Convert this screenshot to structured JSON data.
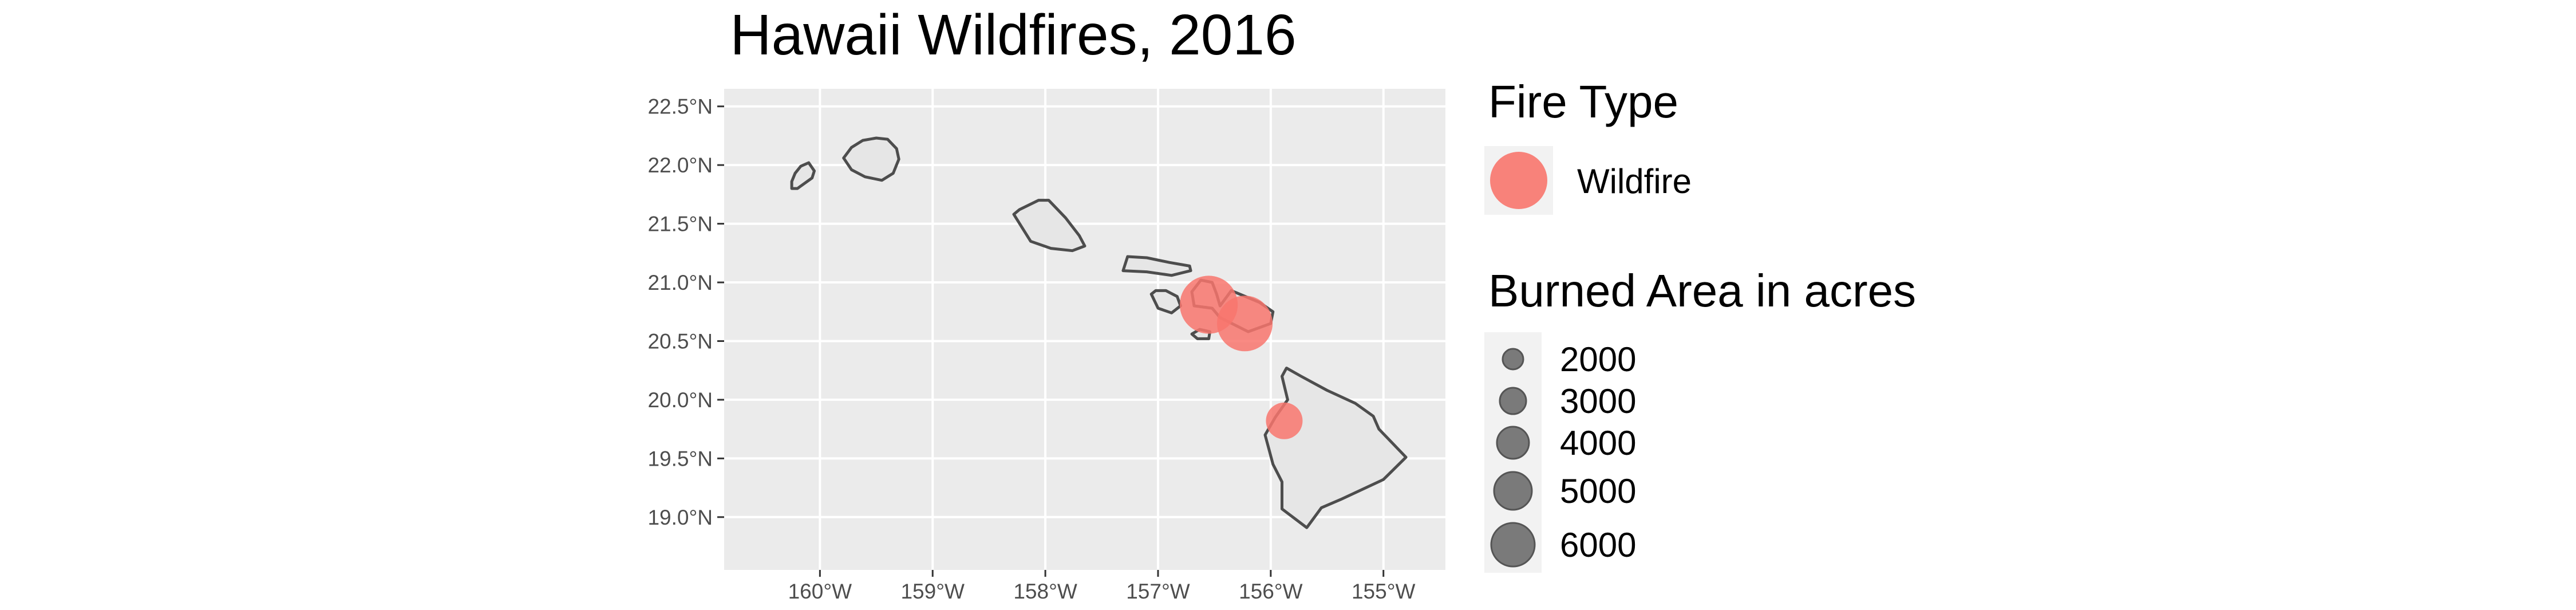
{
  "title": "Hawaii Wildfires, 2016",
  "colors": {
    "panel_background": "#ebebeb",
    "grid": "#ffffff",
    "island_fill": "#e6e6e6",
    "island_stroke": "#4d4d4d",
    "wildfire": "#f8766d",
    "size_legend_point": "#7a7a7a"
  },
  "chart_data": {
    "type": "map",
    "xlim": [
      -160.85,
      -154.45
    ],
    "ylim": [
      18.55,
      22.65
    ],
    "x_ticks": [
      {
        "value": -160,
        "label": "160°W"
      },
      {
        "value": -159,
        "label": "159°W"
      },
      {
        "value": -158,
        "label": "158°W"
      },
      {
        "value": -157,
        "label": "157°W"
      },
      {
        "value": -156,
        "label": "156°W"
      },
      {
        "value": -155,
        "label": "155°W"
      }
    ],
    "y_ticks": [
      {
        "value": 19.0,
        "label": "19.0°N"
      },
      {
        "value": 19.5,
        "label": "19.5°N"
      },
      {
        "value": 20.0,
        "label": "20.0°N"
      },
      {
        "value": 20.5,
        "label": "20.5°N"
      },
      {
        "value": 21.0,
        "label": "21.0°N"
      },
      {
        "value": 21.5,
        "label": "21.5°N"
      },
      {
        "value": 22.0,
        "label": "22.0°N"
      },
      {
        "value": 22.5,
        "label": "22.5°N"
      }
    ],
    "grid": true,
    "islands": [
      {
        "name": "niihau",
        "coords": [
          [
            -160.25,
            21.8
          ],
          [
            -160.2,
            21.8
          ],
          [
            -160.07,
            21.89
          ],
          [
            -160.05,
            21.95
          ],
          [
            -160.1,
            22.02
          ],
          [
            -160.17,
            21.99
          ],
          [
            -160.22,
            21.93
          ],
          [
            -160.25,
            21.86
          ]
        ]
      },
      {
        "name": "kauai",
        "coords": [
          [
            -159.79,
            22.06
          ],
          [
            -159.72,
            21.96
          ],
          [
            -159.6,
            21.9
          ],
          [
            -159.45,
            21.87
          ],
          [
            -159.35,
            21.93
          ],
          [
            -159.3,
            22.05
          ],
          [
            -159.32,
            22.14
          ],
          [
            -159.4,
            22.22
          ],
          [
            -159.5,
            22.23
          ],
          [
            -159.62,
            22.21
          ],
          [
            -159.72,
            22.15
          ]
        ]
      },
      {
        "name": "oahu",
        "coords": [
          [
            -158.28,
            21.58
          ],
          [
            -158.13,
            21.35
          ],
          [
            -157.95,
            21.29
          ],
          [
            -157.76,
            21.27
          ],
          [
            -157.65,
            21.31
          ],
          [
            -157.7,
            21.4
          ],
          [
            -157.82,
            21.55
          ],
          [
            -157.97,
            21.7
          ],
          [
            -158.06,
            21.7
          ],
          [
            -158.23,
            21.62
          ]
        ]
      },
      {
        "name": "molokai",
        "coords": [
          [
            -157.31,
            21.1
          ],
          [
            -157.27,
            21.22
          ],
          [
            -157.1,
            21.21
          ],
          [
            -156.9,
            21.17
          ],
          [
            -156.72,
            21.14
          ],
          [
            -156.71,
            21.1
          ],
          [
            -156.88,
            21.06
          ],
          [
            -157.1,
            21.09
          ]
        ]
      },
      {
        "name": "lanai",
        "coords": [
          [
            -157.06,
            20.9
          ],
          [
            -157.0,
            20.78
          ],
          [
            -156.88,
            20.74
          ],
          [
            -156.8,
            20.8
          ],
          [
            -156.83,
            20.88
          ],
          [
            -156.93,
            20.93
          ],
          [
            -157.02,
            20.93
          ]
        ]
      },
      {
        "name": "kahoolawe",
        "coords": [
          [
            -156.7,
            20.56
          ],
          [
            -156.65,
            20.52
          ],
          [
            -156.55,
            20.52
          ],
          [
            -156.54,
            20.58
          ],
          [
            -156.63,
            20.6
          ]
        ]
      },
      {
        "name": "maui",
        "coords": [
          [
            -156.7,
            20.92
          ],
          [
            -156.62,
            21.02
          ],
          [
            -156.52,
            21.0
          ],
          [
            -156.48,
            20.9
          ],
          [
            -156.45,
            20.8
          ],
          [
            -156.35,
            20.93
          ],
          [
            -156.1,
            20.83
          ],
          [
            -155.98,
            20.75
          ],
          [
            -156.0,
            20.65
          ],
          [
            -156.2,
            20.58
          ],
          [
            -156.45,
            20.7
          ],
          [
            -156.52,
            20.78
          ],
          [
            -156.68,
            20.8
          ]
        ]
      },
      {
        "name": "hawaii",
        "coords": [
          [
            -155.86,
            20.27
          ],
          [
            -155.73,
            20.2
          ],
          [
            -155.5,
            20.08
          ],
          [
            -155.25,
            19.97
          ],
          [
            -155.09,
            19.86
          ],
          [
            -155.04,
            19.75
          ],
          [
            -154.8,
            19.51
          ],
          [
            -155.0,
            19.32
          ],
          [
            -155.38,
            19.15
          ],
          [
            -155.55,
            19.08
          ],
          [
            -155.68,
            18.91
          ],
          [
            -155.9,
            19.07
          ],
          [
            -155.9,
            19.3
          ],
          [
            -155.98,
            19.45
          ],
          [
            -156.05,
            19.7
          ],
          [
            -155.96,
            19.85
          ],
          [
            -155.85,
            20.0
          ],
          [
            -155.9,
            20.2
          ]
        ]
      }
    ],
    "series": [
      {
        "name": "Wildfire",
        "points": [
          {
            "lon": -156.55,
            "lat": 20.81,
            "acres": 5000
          },
          {
            "lon": -156.23,
            "lat": 20.65,
            "acres": 4600
          },
          {
            "lon": -155.88,
            "lat": 19.82,
            "acres": 2000
          }
        ]
      }
    ]
  },
  "legend": {
    "fire_type": {
      "title": "Fire Type",
      "items": [
        {
          "label": "Wildfire"
        }
      ]
    },
    "burned_area": {
      "title": "Burned Area in acres",
      "items": [
        {
          "label": "2000",
          "value": 2000
        },
        {
          "label": "3000",
          "value": 3000
        },
        {
          "label": "4000",
          "value": 4000
        },
        {
          "label": "5000",
          "value": 5000
        },
        {
          "label": "6000",
          "value": 6000
        }
      ]
    }
  }
}
